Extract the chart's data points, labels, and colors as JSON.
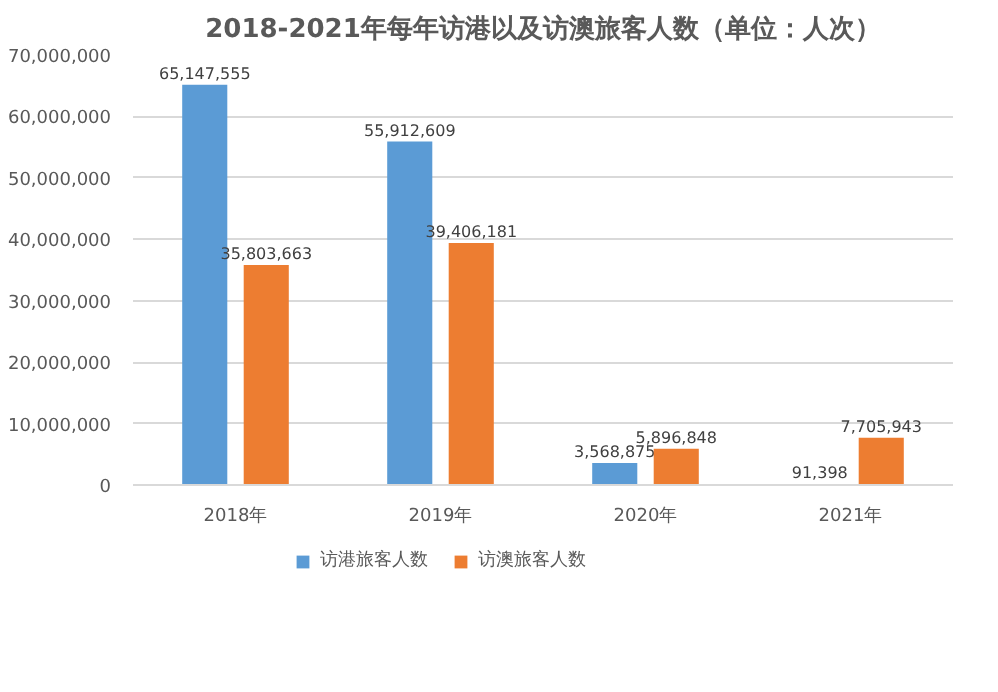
{
  "chart_data": {
    "type": "bar",
    "title": "2018-2021年每年访港以及访澳旅客人数（单位：人次）",
    "categories": [
      "2018年",
      "2019年",
      "2020年",
      "2021年"
    ],
    "series": [
      {
        "name": "访港旅客人数",
        "color": "#5b9bd5",
        "values": [
          65147555,
          55912609,
          3568875,
          91398
        ],
        "value_labels": [
          "65,147,555",
          "55,912,609",
          "3,568,875",
          "91,398"
        ]
      },
      {
        "name": "访澳旅客人数",
        "color": "#ed7d31",
        "values": [
          35803663,
          39406181,
          5896848,
          7705943
        ],
        "value_labels": [
          "35,803,663",
          "39,406,181",
          "5,896,848",
          "7,705,943"
        ]
      }
    ],
    "ylim": [
      0,
      70000000
    ],
    "yticks": [
      {
        "value": 0,
        "label": "0"
      },
      {
        "value": 10000000,
        "label": "10,000,000"
      },
      {
        "value": 20000000,
        "label": "20,000,000"
      },
      {
        "value": 30000000,
        "label": "30,000,000"
      },
      {
        "value": 40000000,
        "label": "40,000,000"
      },
      {
        "value": 50000000,
        "label": "50,000,000"
      },
      {
        "value": 60000000,
        "label": "60,000,000"
      },
      {
        "value": 70000000,
        "label": "70,000,000"
      }
    ],
    "grid": "y",
    "legend": "bottom"
  }
}
